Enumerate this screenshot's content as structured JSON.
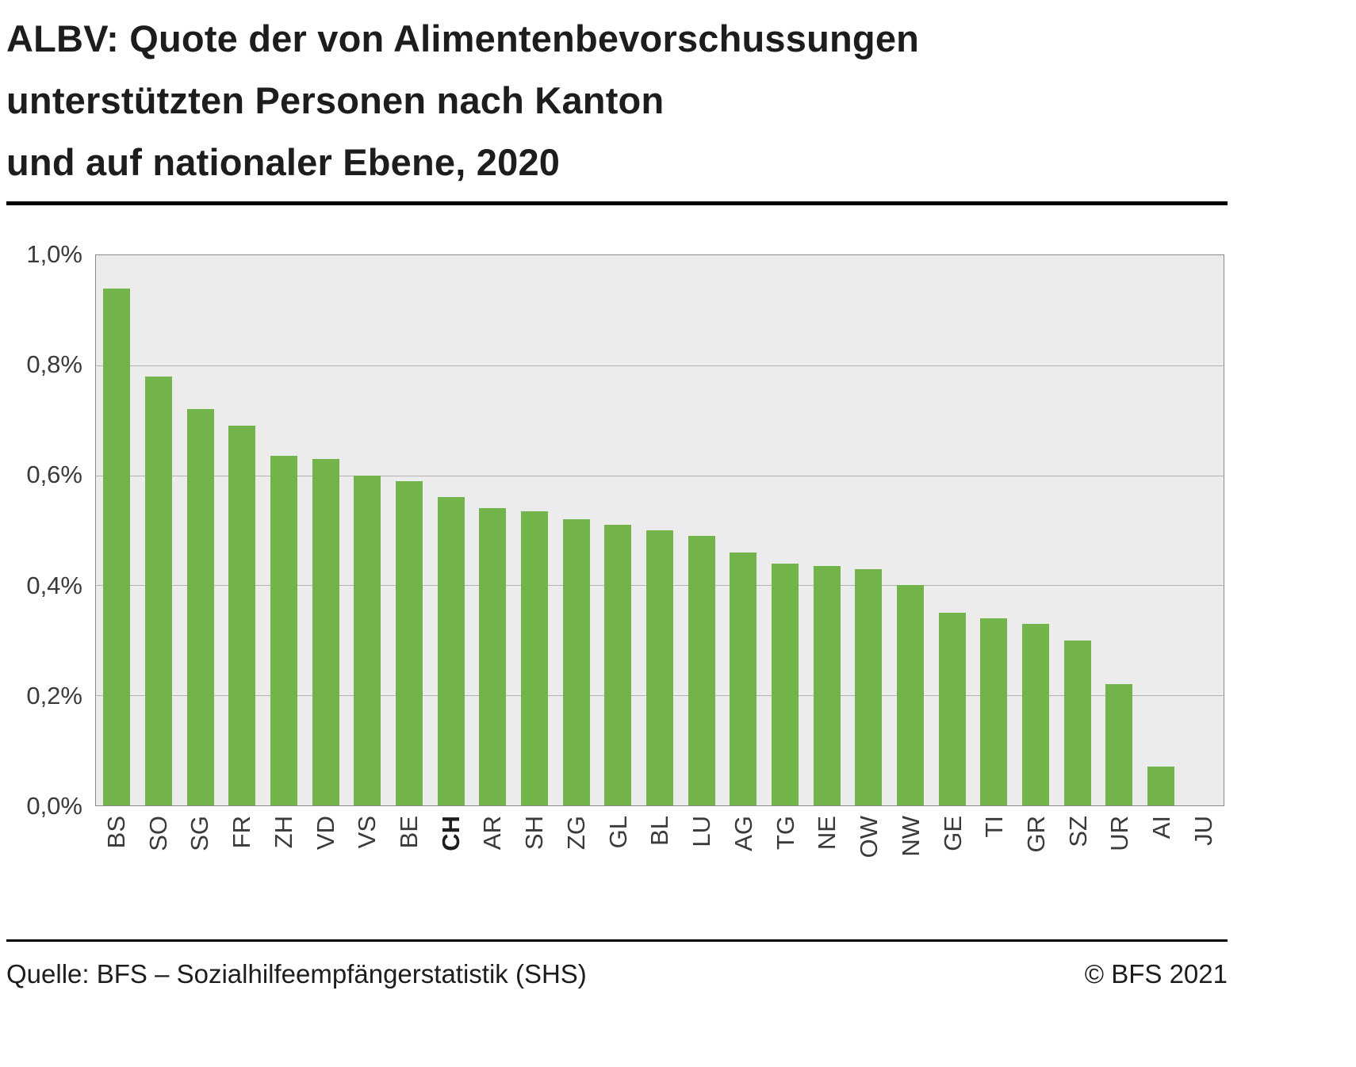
{
  "title_lines": [
    "ALBV: Quote der von Alimentenbevorschussungen",
    "unterstützten Personen nach Kanton",
    "und auf nationaler Ebene, 2020"
  ],
  "footer": {
    "source": "Quelle: BFS – Sozialhilfeempfängerstatistik (SHS)",
    "copyright": "© BFS 2021"
  },
  "chart_data": {
    "type": "bar",
    "title": "ALBV: Quote der von Alimentenbevorschussungen unterstützten Personen nach Kanton und auf nationaler Ebene, 2020",
    "categories": [
      "BS",
      "SO",
      "SG",
      "FR",
      "ZH",
      "VD",
      "VS",
      "BE",
      "CH",
      "AR",
      "SH",
      "ZG",
      "GL",
      "BL",
      "LU",
      "AG",
      "TG",
      "NE",
      "OW",
      "NW",
      "GE",
      "TI",
      "GR",
      "SZ",
      "UR",
      "AI",
      "JU"
    ],
    "values": [
      0.94,
      0.78,
      0.72,
      0.69,
      0.635,
      0.63,
      0.6,
      0.59,
      0.56,
      0.54,
      0.535,
      0.52,
      0.51,
      0.5,
      0.49,
      0.46,
      0.44,
      0.435,
      0.43,
      0.4,
      0.35,
      0.34,
      0.33,
      0.3,
      0.22,
      0.07,
      0.0
    ],
    "highlighted_category": "CH",
    "xlabel": "",
    "ylabel": "",
    "ylim": [
      0,
      1.0
    ],
    "ytick_values": [
      1.0,
      0.8,
      0.6,
      0.4,
      0.2,
      0.0
    ],
    "ytick_labels": [
      "1,0%",
      "0,8%",
      "0,6%",
      "0,4%",
      "0,2%",
      "0,0%"
    ],
    "grid": true,
    "legend_position": "none",
    "bar_color": "#73b44a",
    "plot_background": "#ececec",
    "gridline_color": "#b3b3b3"
  }
}
